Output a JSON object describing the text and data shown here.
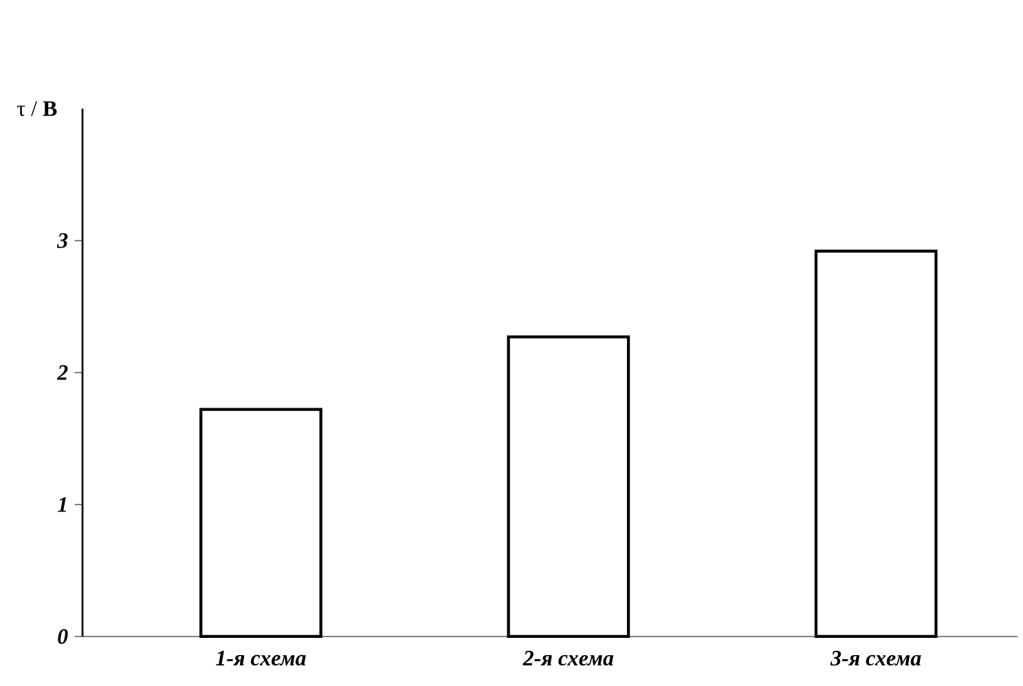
{
  "chart_data": {
    "type": "bar",
    "ylabel": "τ / **В**",
    "categories": [
      "1-я схема",
      "2-я схема",
      "3-я схема"
    ],
    "values": [
      1.72,
      2.27,
      2.92
    ],
    "color": "#000000",
    "ylim": [
      0,
      4
    ],
    "yticks": [
      0,
      1,
      2,
      3
    ]
  }
}
